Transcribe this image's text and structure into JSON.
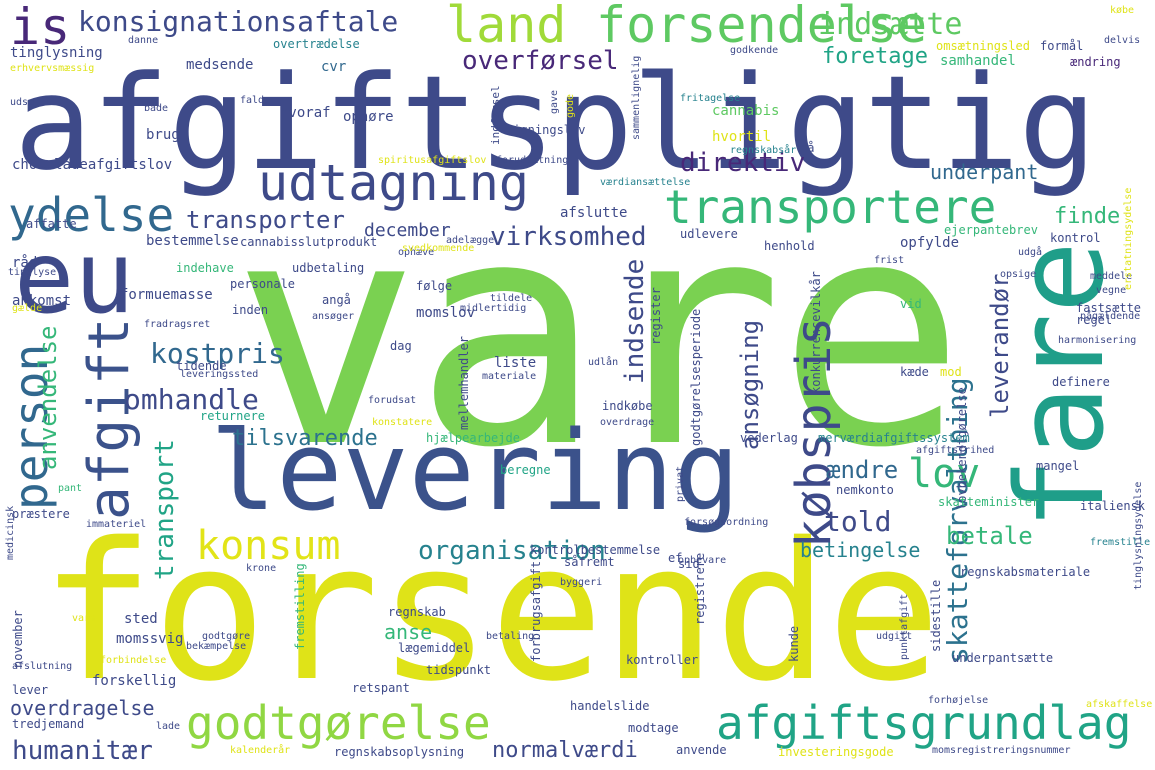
{
  "palette": {
    "navy": "#3e4a89",
    "blue": "#31688e",
    "teal": "#26828e",
    "green": "#1f9e89",
    "mint": "#35b779",
    "lime": "#6ece58",
    "yellow_green": "#b5de2b",
    "yellow": "#e2e418",
    "purple": "#482878"
  },
  "words": [
    "vare",
    "forsende",
    "afgiftspligtig",
    "levering",
    "eu",
    "fare",
    "udtagning",
    "land",
    "forsendelse",
    "transportere",
    "afgiftsgrundlag",
    "godtgørelse",
    "afgift",
    "is",
    "konsignationsaftale",
    "ydelse",
    "købspris",
    "person",
    "konsum",
    "overførsel",
    "indsætte",
    "lov",
    "skatteforvaltning",
    "organisation",
    "indsende",
    "kostpris",
    "omhandle",
    "direktiv",
    "virksomhed",
    "transporter",
    "transport",
    "anvendelse",
    "told",
    "ansøgning",
    "leverandør",
    "humanitær",
    "tilsvarende",
    "betale",
    "ændre",
    "finde",
    "foretage",
    "december",
    "underpant",
    "betingelse",
    "normalværdi",
    "overdragelse",
    "anse",
    "medsende",
    "tinglysning",
    "cvr",
    "overtrædelse",
    "ophøre",
    "hvoraf",
    "brug",
    "chokoladeafgiftslov",
    "cannabis",
    "hvortil",
    "samhandel",
    "ændring",
    "formål",
    "omsætningsled",
    "godkende",
    "regnskabsår",
    "fritagelse",
    "ligningslov",
    "indførsel",
    "spiritusafgiftslov",
    "forudsætning",
    "værdiansættelse",
    "afslutte",
    "affatte",
    "bestemmelse",
    "cannabisslutprodukt",
    "udlevere",
    "ejerpantebrev",
    "opfylde",
    "henhold",
    "kontrol",
    "indehave",
    "udbetaling",
    "følge",
    "personale",
    "formuemasse",
    "inden",
    "angå",
    "momslov",
    "register",
    "registrere",
    "vid",
    "regel",
    "fastsætte",
    "pågældende",
    "harmonisering",
    "ankomst",
    "råd",
    "tinglyse",
    "liste",
    "dag",
    "tidende",
    "mellemhandler",
    "indkøbe",
    "konkurrencevilkår",
    "kæde",
    "mod",
    "definere",
    "lovbekendtgørelse",
    "returnere",
    "hjælpearbejde",
    "vederlag",
    "merværdiafgiftssystem",
    "mangel",
    "godtgørelsesperiode",
    "beregne",
    "nemkonto",
    "skatteminister",
    "italiensk",
    "sid",
    "regnskabsmateriale",
    "kontrolbestemmelse",
    "såfremt",
    "fremstilling",
    "regnskab",
    "momssvig",
    "sted",
    "november",
    "lever",
    "forskellig",
    "kontroller",
    "kunde",
    "sidestille",
    "underpantsætte",
    "retspant",
    "tidspunkt",
    "lægemiddel",
    "forbrugsafgift",
    "handelslide",
    "modtage",
    "regnskabsoplysning",
    "kalenderår",
    "anvende",
    "investeringsgode",
    "momsregistreringsnummer",
    "tredjemand",
    "lade",
    "præstere",
    "medicinsk",
    "pant",
    "afslutning",
    "krone",
    "immateriel",
    "udgift",
    "punktafgift",
    "forhøjelse",
    "afskaffelse",
    "byggeri",
    "betaling",
    "godtgøre",
    "bekæmpelse",
    "forbindelse",
    "varm",
    "opbevare",
    "ef",
    "fremstille",
    "privat",
    "forsøgsordning",
    "afgiftsfrihed",
    "konstatere",
    "forudsat",
    "leveringssted",
    "udlån",
    "materiale",
    "overdrage",
    "tildele",
    "midlertidig",
    "ansøger",
    "fradragsret",
    "gælde",
    "udgå",
    "frist",
    "meddele",
    "vegne",
    "erstatningsydelse",
    "tinglysningsydelse",
    "opsige",
    "ophæve",
    "gave",
    "adelægge",
    "svedkommende",
    "sammenlignelig",
    "delvis",
    "købe",
    "danne",
    "erhvervsmæssig",
    "udsætte",
    "falde",
    "både",
    "nå",
    "gode"
  ]
}
